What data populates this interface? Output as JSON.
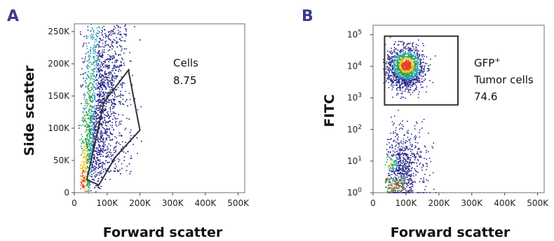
{
  "chart_data": [
    {
      "panel": "A",
      "type": "scatter",
      "plot_style": "flow-cytometry density dot plot",
      "xlabel": "Forward scatter",
      "ylabel": "Side scatter",
      "xlim": [
        0,
        520000
      ],
      "ylim": [
        0,
        262000
      ],
      "x_scale": "linear",
      "y_scale": "linear",
      "x_ticks": [
        0,
        100000,
        200000,
        300000,
        400000,
        500000
      ],
      "x_tick_labels": [
        "0",
        "100K",
        "200K",
        "300K",
        "400K",
        "500K"
      ],
      "y_ticks": [
        0,
        50000,
        100000,
        150000,
        200000,
        250000
      ],
      "y_tick_labels": [
        "0",
        "50K",
        "100K",
        "150K",
        "200K",
        "250K"
      ],
      "gate": {
        "shape": "polygon",
        "label": "Cells",
        "value": "8.75",
        "vertices": [
          [
            38000,
            20000
          ],
          [
            75000,
            12000
          ],
          [
            125000,
            55000
          ],
          [
            200000,
            97000
          ],
          [
            165000,
            190000
          ],
          [
            90000,
            140000
          ]
        ]
      },
      "colors": {
        "low": "#2a2a8a",
        "mid": "#2fa24a",
        "high": "#e0402a"
      }
    },
    {
      "panel": "B",
      "type": "scatter",
      "plot_style": "flow-cytometry density dot plot",
      "xlabel": "Forward scatter",
      "ylabel": "FITC",
      "xlim": [
        0,
        520000
      ],
      "ylim": [
        1,
        200000
      ],
      "x_scale": "linear",
      "y_scale": "log",
      "x_ticks": [
        0,
        100000,
        200000,
        300000,
        400000,
        500000
      ],
      "x_tick_labels": [
        "0",
        "100K",
        "200K",
        "300K",
        "400K",
        "500K"
      ],
      "y_ticks": [
        1,
        10,
        100,
        1000,
        10000,
        100000
      ],
      "y_tick_labels": [
        {
          "base": "10",
          "exp": "0"
        },
        {
          "base": "10",
          "exp": "1"
        },
        {
          "base": "10",
          "exp": "2"
        },
        {
          "base": "10",
          "exp": "3"
        },
        {
          "base": "10",
          "exp": "4"
        },
        {
          "base": "10",
          "exp": "5"
        }
      ],
      "gate": {
        "shape": "rectangle",
        "label_lines": [
          {
            "text": "GFP",
            "sup": "+"
          },
          {
            "text": "Tumor cells",
            "sup": ""
          }
        ],
        "value": "74.6",
        "x_range": [
          35000,
          258000
        ],
        "y_range": [
          600,
          90000
        ]
      },
      "colors": {
        "low": "#2a2a8a",
        "mid": "#2fa24a",
        "high": "#e0402a"
      }
    }
  ]
}
